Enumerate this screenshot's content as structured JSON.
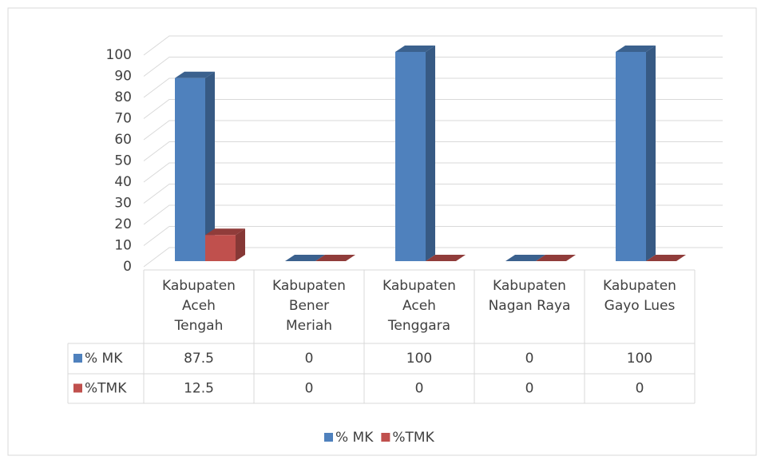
{
  "chart_data": {
    "type": "bar3d",
    "categories": [
      [
        "Kabupaten",
        "Aceh",
        "Tengah"
      ],
      [
        "Kabupaten",
        "Bener",
        "Meriah"
      ],
      [
        "Kabupaten",
        "Aceh",
        "Tenggara"
      ],
      [
        "Kabupaten",
        "Nagan Raya"
      ],
      [
        "Kabupaten",
        "Gayo Lues"
      ]
    ],
    "series": [
      {
        "name": "% MK",
        "color": "#4f81bd",
        "values": [
          87.5,
          0,
          100,
          0,
          100
        ]
      },
      {
        "name": "%TMK",
        "color": "#c0504d",
        "values": [
          12.5,
          0,
          0,
          0,
          0
        ]
      }
    ],
    "ylim": [
      0,
      100
    ],
    "yticks": [
      0,
      10,
      20,
      30,
      40,
      50,
      60,
      70,
      80,
      90,
      100
    ],
    "grid": true,
    "legend": "bottom",
    "data_table": true
  }
}
